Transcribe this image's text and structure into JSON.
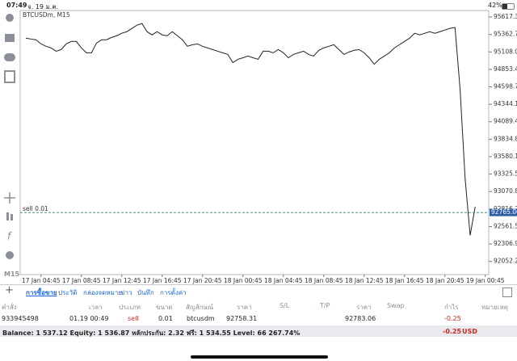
{
  "status_bar": {
    "time": "07:49",
    "date": "จ. 19 ม.ค.",
    "battery": "42%"
  },
  "sidebar": {
    "timeframe": "M15"
  },
  "chart_data": {
    "type": "line",
    "title": "BTCUSDm, M15",
    "categories": [
      null,
      null,
      null,
      "17 Jan 04:45",
      null,
      null,
      null,
      null,
      null,
      null,
      null,
      "17 Jan 08:45",
      null,
      null,
      null,
      null,
      null,
      null,
      null,
      "17 Jan 12:45",
      null,
      null,
      null,
      null,
      null,
      null,
      null,
      "17 Jan 16:45",
      null,
      null,
      null,
      null,
      null,
      null,
      null,
      "17 Jan 20:45",
      null,
      null,
      null,
      null,
      null,
      null,
      null,
      "18 Jan 00:45",
      null,
      null,
      null,
      null,
      null,
      null,
      null,
      "18 Jan 04:45",
      null,
      null,
      null,
      null,
      null,
      null,
      null,
      "18 Jan 08:45",
      null,
      null,
      null,
      null,
      null,
      null,
      null,
      "18 Jan 12:45",
      null,
      null,
      null,
      null,
      null,
      null,
      null,
      "18 Jan 16:45",
      null,
      null,
      null,
      null,
      null,
      null,
      null,
      "18 Jan 20:45",
      null,
      null,
      null,
      null,
      null,
      null,
      null,
      "19 Jan 00:45"
    ],
    "series": [
      {
        "name": "BTCUSDm",
        "color": "#222222",
        "values": [
          95308,
          95296,
          95285,
          95225,
          95190,
          95166,
          95118,
          95142,
          95225,
          95261,
          95261,
          95166,
          95095,
          95095,
          95237,
          95285,
          95285,
          95320,
          95344,
          95380,
          95403,
          95451,
          95498,
          95522,
          95403,
          95356,
          95403,
          95356,
          95344,
          95403,
          95344,
          95285,
          95190,
          95213,
          95225,
          95190,
          95166,
          95142,
          95118,
          95095,
          95071,
          94952,
          95000,
          95023,
          95047,
          95023,
          95000,
          95118,
          95118,
          95095,
          95142,
          95095,
          95023,
          95071,
          95095,
          95118,
          95071,
          95047,
          95130,
          95166,
          95190,
          95213,
          95142,
          95071,
          95107,
          95130,
          95142,
          95095,
          95023,
          94928,
          95000,
          95047,
          95095,
          95166,
          95213,
          95261,
          95308,
          95380,
          95356,
          95380,
          95403,
          95380,
          95403,
          95427,
          95451,
          95463,
          94572,
          93265,
          92433,
          92850,
          null,
          null
        ]
      }
    ],
    "ylim": [
      91860,
      95712
    ],
    "yticks": [
      95617.35,
      {
        "value": 95362.7,
        "label": "95362.70"
      },
      95108.05,
      {
        "value": 94853.4,
        "label": "94853.40"
      },
      94598.75,
      {
        "value": 94344.1,
        "label": "94344.10"
      },
      94089.45,
      {
        "value": 93834.8,
        "label": "93834.80"
      },
      93580.15,
      {
        "value": 93325.5,
        "label": "93325.50"
      },
      93070.85,
      {
        "value": 92816.2,
        "label": "92816.20"
      },
      92561.55,
      {
        "value": 92306.9,
        "label": "92306.90"
      },
      92052.25
    ],
    "order_line": {
      "label": "sell 0.01",
      "value": 92765.06,
      "color": "#2a7a7a"
    }
  },
  "tabs": [
    "การซื้อขาย",
    "ประวัติ",
    "กล่องจดหมาย",
    "ข่าว",
    "บันทึก",
    "การตั้งค่า"
  ],
  "table": {
    "headers": [
      "คำสั่ง",
      "เวลา",
      "ประเภท",
      "ขนาด",
      "สัญลักษณ์",
      "ราคา",
      "S/L",
      "T/P",
      "ราคา",
      "Swap",
      "กำไร",
      "หมายเหตุ"
    ],
    "row": {
      "order": "933945498",
      "time": "01.19 00:49",
      "type": "sell",
      "size": "0.01",
      "symbol": "btcusdm",
      "price": "92758.31",
      "current_price": "92783.06",
      "profit": "-0.25"
    }
  },
  "footer": {
    "balance": "Balance: 1 537.12 Equity: 1 536.87 หลักประกัน: 2.32 ฟรี: 1 534.55 Level: 66 267.74%",
    "profit": "-0.25",
    "currency": "USD"
  }
}
